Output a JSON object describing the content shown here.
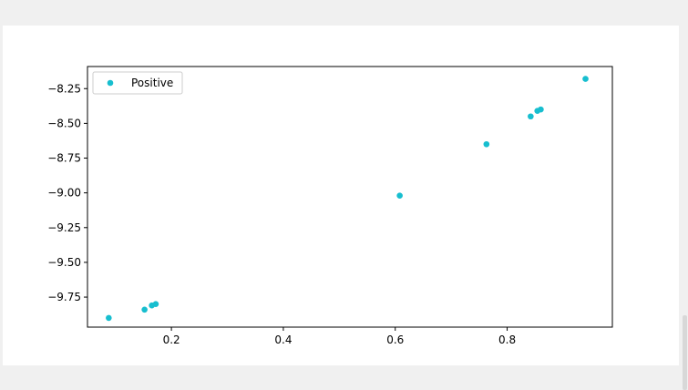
{
  "chart_data": {
    "type": "scatter",
    "title": "",
    "xlabel": "",
    "ylabel": "",
    "xlim": [
      0.05,
      0.988
    ],
    "ylim": [
      -9.966,
      -8.091
    ],
    "x_ticks": [
      0.2,
      0.4,
      0.6,
      0.8
    ],
    "x_tick_labels": [
      "0.2",
      "0.4",
      "0.6",
      "0.8"
    ],
    "y_ticks": [
      -9.75,
      -9.5,
      -9.25,
      -9.0,
      -8.75,
      -8.5,
      -8.25
    ],
    "y_tick_labels": [
      "−9.75",
      "−9.50",
      "−9.25",
      "−9.00",
      "−8.75",
      "−8.50",
      "−8.25"
    ],
    "grid": false,
    "legend_position": "upper-left",
    "series": [
      {
        "name": "Positive",
        "color": "#17becf",
        "x": [
          0.088,
          0.152,
          0.165,
          0.172,
          0.608,
          0.763,
          0.842,
          0.854,
          0.86,
          0.94
        ],
        "y": [
          -9.9,
          -9.84,
          -9.81,
          -9.8,
          -9.02,
          -8.65,
          -8.45,
          -8.41,
          -8.4,
          -8.18
        ]
      }
    ]
  }
}
